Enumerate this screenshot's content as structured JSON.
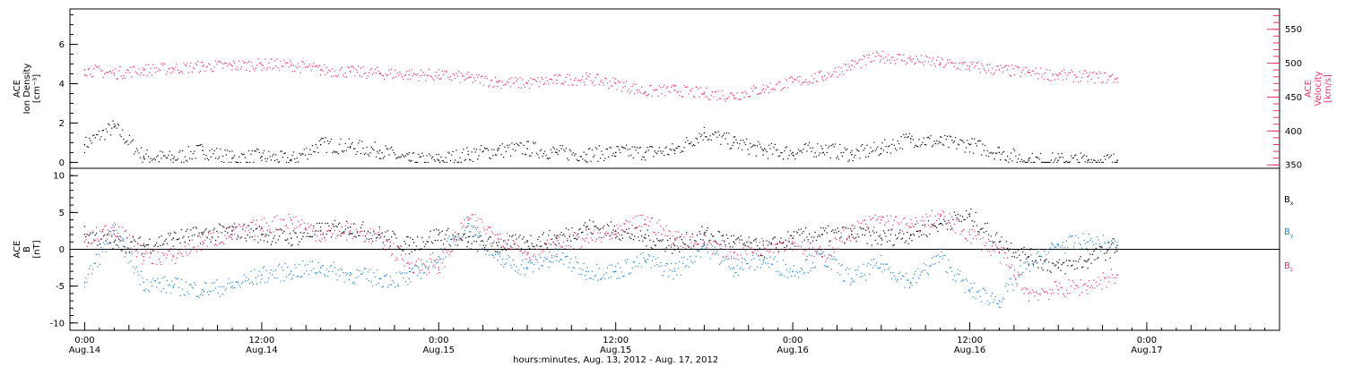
{
  "chart_data": [
    {
      "type": "scatter",
      "panel": "ace-plasma",
      "left_axis": {
        "label_lines": [
          "ACE",
          "Ion Density",
          "[cm⁻³]"
        ],
        "ylim": [
          -0.3,
          7.8
        ],
        "ticks": [
          0,
          2,
          4,
          6
        ],
        "tick_labels": [
          "0",
          "2",
          "4",
          "6"
        ]
      },
      "right_axis": {
        "label_lines": [
          "ACE",
          "Velocity",
          "[km/s]"
        ],
        "ylim": [
          345,
          580
        ],
        "ticks": [
          350,
          400,
          450,
          500,
          550
        ],
        "tick_labels": [
          "350",
          "400",
          "450",
          "500",
          "550"
        ],
        "color": "#e8336b"
      },
      "series": [
        {
          "name": "Ion Density",
          "axis": "left",
          "color": "#000000",
          "x_hours": [
            0,
            2,
            4,
            6,
            8,
            10,
            12,
            14,
            16,
            18,
            20,
            22,
            24,
            26,
            28,
            30,
            32,
            34,
            36,
            38,
            40,
            42,
            44,
            46,
            48,
            50,
            52,
            54,
            56,
            58,
            60,
            62,
            64,
            66,
            68,
            70
          ],
          "values": [
            0.9,
            1.8,
            0.3,
            0.2,
            0.6,
            0.2,
            0.3,
            0.1,
            0.9,
            0.8,
            0.6,
            0.1,
            0.1,
            0.4,
            0.6,
            0.7,
            0.5,
            0.4,
            0.5,
            0.5,
            0.6,
            1.5,
            1.0,
            0.6,
            0.5,
            0.7,
            0.4,
            0.7,
            1.2,
            1.0,
            0.9,
            0.5,
            0.1,
            0.1,
            0.1,
            0.1
          ]
        },
        {
          "name": "Velocity",
          "axis": "right",
          "color": "#e8336b",
          "x_hours": [
            0,
            2,
            4,
            6,
            8,
            10,
            12,
            14,
            16,
            18,
            20,
            22,
            24,
            26,
            28,
            30,
            32,
            34,
            36,
            38,
            40,
            42,
            44,
            46,
            48,
            50,
            52,
            54,
            56,
            58,
            60,
            62,
            64,
            66,
            68,
            70
          ],
          "values": [
            490,
            485,
            490,
            492,
            495,
            496,
            498,
            497,
            490,
            487,
            485,
            483,
            482,
            478,
            472,
            470,
            475,
            477,
            470,
            458,
            460,
            455,
            452,
            462,
            472,
            480,
            497,
            510,
            505,
            500,
            495,
            490,
            486,
            482,
            480,
            478
          ]
        }
      ]
    },
    {
      "type": "scatter",
      "panel": "ace-magnetic-field",
      "left_axis": {
        "label_lines": [
          "ACE",
          "B",
          "[nT]"
        ],
        "ylim": [
          -11,
          11
        ],
        "ticks": [
          -10,
          -5,
          0,
          5,
          10
        ],
        "tick_labels": [
          "-10",
          "-5",
          "0",
          "5",
          "10"
        ]
      },
      "zero_line": true,
      "series": [
        {
          "name": "Bx",
          "label_main": "B",
          "label_sub": "x",
          "color": "#000000",
          "x_hours": [
            0,
            2,
            4,
            6,
            8,
            10,
            12,
            14,
            16,
            18,
            20,
            22,
            24,
            26,
            28,
            30,
            32,
            34,
            36,
            38,
            40,
            42,
            44,
            46,
            48,
            50,
            52,
            54,
            56,
            58,
            60,
            62,
            64,
            66,
            68,
            70
          ],
          "values": [
            2.0,
            1.0,
            0.5,
            1.5,
            2.0,
            2.5,
            2.0,
            1.5,
            2.5,
            3.0,
            2.0,
            0.5,
            2.0,
            1.0,
            0.5,
            1.0,
            1.5,
            3.0,
            2.5,
            1.5,
            0.5,
            2.0,
            1.0,
            0.0,
            1.5,
            2.0,
            2.0,
            1.5,
            2.0,
            3.5,
            4.5,
            1.0,
            -1.0,
            -2.5,
            -1.5,
            0.5
          ]
        },
        {
          "name": "By",
          "label_main": "B",
          "label_sub": "y",
          "color": "#1f86d9",
          "x_hours": [
            0,
            2,
            4,
            6,
            8,
            10,
            12,
            14,
            16,
            18,
            20,
            22,
            24,
            26,
            28,
            30,
            32,
            34,
            36,
            38,
            40,
            42,
            44,
            46,
            48,
            50,
            52,
            54,
            56,
            58,
            60,
            62,
            64,
            66,
            68,
            70
          ],
          "values": [
            -4.5,
            2.5,
            -4.5,
            -5.0,
            -5.5,
            -5.0,
            -3.5,
            -3.0,
            -2.5,
            -3.5,
            -4.0,
            -4.0,
            -1.0,
            3.5,
            -1.5,
            -2.5,
            -1.0,
            -3.0,
            -3.0,
            -1.5,
            -3.0,
            0.5,
            -2.5,
            -1.5,
            -3.0,
            -1.0,
            -4.0,
            -2.0,
            -4.5,
            -1.0,
            -5.5,
            -7.0,
            -2.0,
            0.5,
            1.0,
            0.5
          ]
        },
        {
          "name": "Bz",
          "label_main": "B",
          "label_sub": "z",
          "color": "#e8336b",
          "x_hours": [
            0,
            2,
            4,
            6,
            8,
            10,
            12,
            14,
            16,
            18,
            20,
            22,
            24,
            26,
            28,
            30,
            32,
            34,
            36,
            38,
            40,
            42,
            44,
            46,
            48,
            50,
            52,
            54,
            56,
            58,
            60,
            62,
            64,
            66,
            68,
            70
          ],
          "values": [
            1.0,
            3.0,
            -1.0,
            -1.0,
            1.0,
            2.0,
            3.0,
            4.0,
            2.0,
            2.5,
            1.5,
            -2.0,
            -2.5,
            4.0,
            2.0,
            -0.5,
            0.5,
            1.5,
            2.0,
            4.0,
            1.5,
            1.0,
            -0.5,
            0.5,
            1.0,
            -1.0,
            2.5,
            4.0,
            3.0,
            4.5,
            2.0,
            -0.5,
            -6.0,
            -5.5,
            -5.0,
            -3.5
          ]
        }
      ]
    }
  ],
  "x_axis": {
    "xlim_hours": [
      -1,
      81
    ],
    "major_ticks": [
      {
        "h": 0,
        "line1": "0:00",
        "line2": "Aug.14"
      },
      {
        "h": 12,
        "line1": "12:00",
        "line2": "Aug.14"
      },
      {
        "h": 24,
        "line1": "0:00",
        "line2": "Aug.15"
      },
      {
        "h": 36,
        "line1": "12:00",
        "line2": "Aug.15"
      },
      {
        "h": 48,
        "line1": "0:00",
        "line2": "Aug.16"
      },
      {
        "h": 60,
        "line1": "12:00",
        "line2": "Aug.16"
      },
      {
        "h": 72,
        "line1": "0:00",
        "line2": "Aug.17"
      }
    ],
    "title": "hours:minutes, Aug. 13, 2012 - Aug. 17, 2012"
  }
}
